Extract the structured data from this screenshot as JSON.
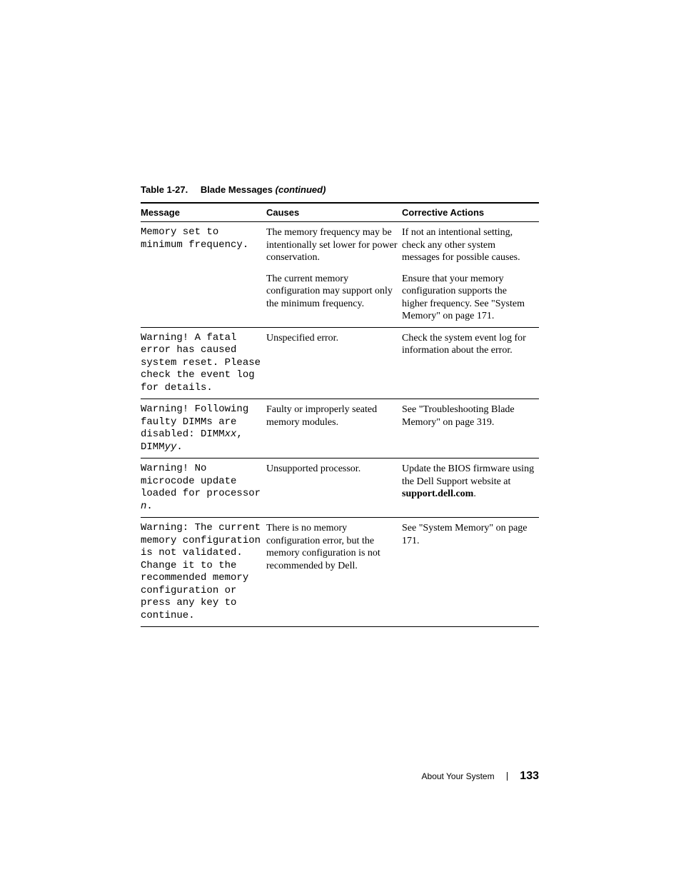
{
  "caption": {
    "table_number": "Table 1-27.",
    "title": "Blade Messages",
    "continued": "(continued)"
  },
  "headers": {
    "message": "Message",
    "causes": "Causes",
    "actions": "Corrective Actions"
  },
  "rows": [
    {
      "message_html": "Memory set to minimum frequency.",
      "cause": "The memory frequency may be intentionally set lower for power conservation.",
      "action": "If not an intentional setting, check any other system messages for possible causes."
    },
    {
      "message_html": "",
      "cause": "The current memory configuration may support only the minimum frequency.",
      "action": "Ensure that your memory configuration supports the higher frequency. See \"System Memory\" on page 171."
    },
    {
      "message_html": "Warning! A fatal error has caused system reset. Please check the event log for details.",
      "cause": "Unspecified error.",
      "action": "Check the system event log for information about the error."
    },
    {
      "message_html": "Warning! Following faulty DIMMs are disabled: DIMM<span class=\"ital\">xx</span>, DIMM<span class=\"ital\">yy</span>.",
      "cause": "Faulty or improperly seated memory modules.",
      "action": "See \"Troubleshooting Blade Memory\" on page 319."
    },
    {
      "message_html": "Warning! No microcode update loaded for processor <span class=\"ital\">n</span>.",
      "cause": "Unsupported processor.",
      "action_html": "Update the BIOS firmware using the Dell Support website at <span class=\"bold\">support.dell.com</span>."
    },
    {
      "message_html": "Warning: The current memory configuration is not validated. Change it to the recommended memory configuration or press any key to continue.",
      "cause": "There is no memory configuration error, but the memory configuration is not recommended by Dell.",
      "action": "See \"System Memory\" on page 171."
    }
  ],
  "footer": {
    "section": "About Your System",
    "page": "133"
  }
}
